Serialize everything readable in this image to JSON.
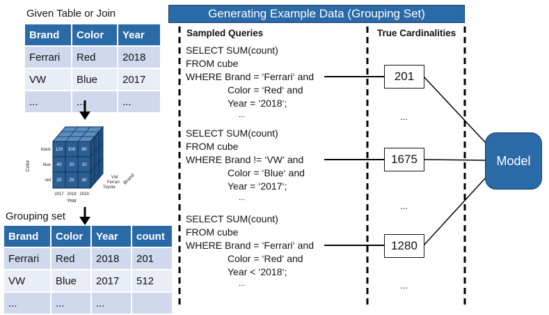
{
  "given_table": {
    "caption": "Given Table or Join",
    "headers": [
      "Brand",
      "Color",
      "Year"
    ],
    "rows": [
      [
        "Ferrari",
        "Red",
        "2018"
      ],
      [
        "VW",
        "Blue",
        "2017"
      ],
      [
        "...",
        "...",
        "..."
      ]
    ]
  },
  "cube": {
    "ylabel": "Color",
    "xlabel": "Year",
    "zlabel": "Brand",
    "color_ticks": [
      "black",
      "blue",
      "red"
    ],
    "year_ticks": [
      "2017",
      "2018",
      "2019"
    ],
    "brand_ticks": [
      "VW",
      "Ferrari",
      "Toyota"
    ],
    "values": [
      [
        "120",
        "100",
        "80"
      ],
      [
        "40",
        "20",
        "10"
      ],
      [
        "20",
        "25",
        "30"
      ]
    ]
  },
  "grouping_table": {
    "caption": "Grouping set",
    "headers": [
      "Brand",
      "Color",
      "Year",
      "count"
    ],
    "rows": [
      [
        "Ferrari",
        "Red",
        "2018",
        "201"
      ],
      [
        "VW",
        "Blue",
        "2017",
        "512"
      ],
      [
        "...",
        "...",
        "...",
        ""
      ]
    ]
  },
  "right": {
    "banner": "Generating Example Data (Grouping Set)",
    "queries_header": "Sampled Queries",
    "card_header": "True Cardinalities",
    "queries": [
      [
        "SELECT SUM(count)",
        "FROM cube",
        "WHERE Brand = ‘Ferrari‘ and",
        "Color = ‘Red‘ and",
        "Year = ‘2018‘;",
        "..."
      ],
      [
        "SELECT SUM(count)",
        "FROM cube",
        "WHERE Brand != ‘VW‘ and",
        "Color = ‘Blue‘ and",
        "Year = ‘2017‘;",
        "..."
      ],
      [
        "SELECT SUM(count)",
        "FROM cube",
        "WHERE Brand = ‘Ferrari‘ and",
        "Color = ‘Red‘ and",
        "Year < ‘2018‘;",
        "..."
      ]
    ],
    "cardinalities": [
      "201",
      "1675",
      "1280"
    ],
    "card_dots": [
      "...",
      "...",
      "..."
    ],
    "model": "Model"
  },
  "colors": {
    "header_blue": "#2a6aa7",
    "row_light": "#cfd8ec",
    "row_lighter": "#e9edf6",
    "cube_face": "#2b5f94"
  }
}
